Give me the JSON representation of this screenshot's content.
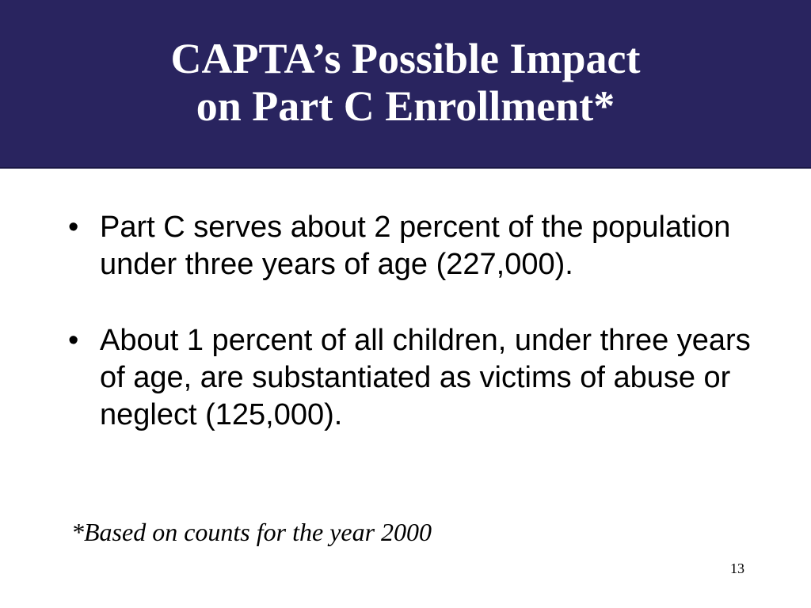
{
  "slide": {
    "title_lines": [
      "CAPTA’s Possible Impact",
      "on Part C Enrollment*"
    ],
    "bullet_marker": "•",
    "bullets": [
      "Part C serves about 2 percent of the population under three years of age (227,000).",
      "About 1 percent of all children, under three years of age, are substantiated as victims of abuse or neglect (125,000)."
    ],
    "footnote": "*Based on counts for the year 2000",
    "page_number": "13"
  },
  "colors": {
    "title_band": "#29245f",
    "title_text": "#ffffff",
    "body_text": "#000000",
    "background": "#ffffff"
  }
}
